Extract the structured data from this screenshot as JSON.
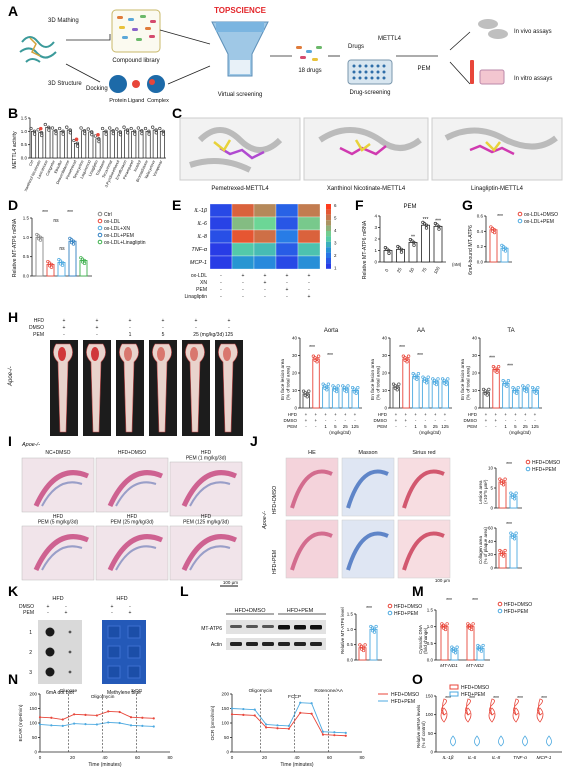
{
  "panel_letters": [
    "A",
    "B",
    "C",
    "D",
    "E",
    "F",
    "G",
    "H",
    "I",
    "J",
    "K",
    "L",
    "M",
    "N",
    "O"
  ],
  "panel_a": {
    "mathing": "3D Mathing",
    "structure": "3D Structure",
    "library": "Compound\nlibrary",
    "docking": "Docking",
    "protein": "Protein",
    "ligand": "Ligand",
    "complex": "Complex",
    "brand": "TOPSCIENCE",
    "virtual": "Virtual screening",
    "drugs18": "18 drugs",
    "drugs": "Drugs",
    "mettl4": "METTL4",
    "drugscreen": "Drug-screening",
    "pem": "PEM",
    "invivo": "In vivo assays",
    "invitro": "In vitro assays"
  },
  "panel_b": {
    "ylabel": "METTL4 activity",
    "yticks": [
      "0.0",
      "0.5",
      "1.0",
      "1.5"
    ],
    "drugs": [
      "Ctrl",
      "Xanthinol Nicotinate",
      "Lancotrione",
      "Cangrelor",
      "Ebsulfur",
      "Desvenlafaxine",
      "Pemetrexed",
      "Tetracycline",
      "Laquinimod",
      "Linagliptin",
      "Trilostane",
      "Tecovirimat",
      "3-Pyridineethanol",
      "Enrofloxacin",
      "Perampanel",
      "Inositol",
      "Bromadiolone",
      "Valacyclovir",
      "Vorapaxar"
    ],
    "values": [
      1.0,
      0.95,
      1.15,
      1.02,
      1.0,
      1.05,
      0.55,
      1.02,
      0.98,
      0.72,
      1.0,
      1.02,
      0.98,
      1.05,
      1.0,
      1.02,
      1.0,
      1.05,
      1.0
    ]
  },
  "panel_c": {
    "labels": [
      "Pemetrexed-METTL4",
      "Xanthinol Nicotinate-METTL4",
      "Linagliptin-METTL4"
    ]
  },
  "panel_d": {
    "ylabel": "Relative MT-ATP6 mRNA",
    "yticks": [
      "0.0",
      "0.5",
      "1.0",
      "1.5"
    ],
    "ns": "ns",
    "stars": "***",
    "legend": [
      "Ctrl",
      "ox-LDL",
      "ox-LDL+XN",
      "ox-LDL+PEM",
      "ox-LDL+Linagliptin"
    ],
    "values": [
      1.0,
      0.3,
      0.35,
      0.9,
      0.4
    ],
    "colors": [
      "#888888",
      "#e8463a",
      "#4ca9e0",
      "#2f7fc1",
      "#3cb04b"
    ]
  },
  "panel_e": {
    "genes": [
      "IL-1β",
      "IL-6",
      "IL-8",
      "TNF-α",
      "MCP-1"
    ],
    "scale": [
      "6",
      "5",
      "4",
      "3",
      "2",
      "1"
    ],
    "conditions": [
      "ox-LDL",
      "XN",
      "PEM",
      "Linagliptin"
    ],
    "signs": [
      [
        "-",
        "+",
        "+",
        "+",
        "+"
      ],
      [
        "-",
        "-",
        "+",
        "-",
        "-"
      ],
      [
        "-",
        "-",
        "-",
        "+",
        "-"
      ],
      [
        "-",
        "-",
        "-",
        "-",
        "+"
      ]
    ],
    "matrix": [
      [
        1.2,
        5.4,
        4.8,
        1.6,
        5.0
      ],
      [
        1.1,
        4.0,
        3.6,
        1.4,
        3.8
      ],
      [
        1.3,
        5.6,
        5.2,
        2.0,
        5.4
      ],
      [
        1.0,
        3.2,
        3.0,
        1.5,
        3.1
      ],
      [
        1.0,
        2.4,
        2.2,
        1.2,
        2.3
      ]
    ]
  },
  "panel_f": {
    "title": "PEM",
    "ylabel": "Relative MT-ATP6 mRNA",
    "yticks": [
      "0",
      "1",
      "2",
      "3",
      "4"
    ],
    "xticks": [
      "0",
      "25",
      "50",
      "75",
      "100"
    ],
    "xunit": "(nM)",
    "values": [
      1.0,
      1.1,
      1.7,
      3.2,
      3.1
    ],
    "stars": [
      "",
      "",
      "**",
      "***",
      "***"
    ]
  },
  "panel_g": {
    "ylabel": "6mA-bound MT-ATP6",
    "yticks": [
      "0.0",
      "0.2",
      "0.4",
      "0.6"
    ],
    "stars": "***",
    "legend": [
      "ox-LDL+DMSO",
      "ox-LDL+PEM"
    ],
    "values": [
      0.42,
      0.18
    ],
    "colors": [
      "#e8463a",
      "#4ca9e0"
    ]
  },
  "panel_h": {
    "rows": [
      "HFD",
      "DMSO",
      "PEM"
    ],
    "signs": [
      [
        "+",
        "+",
        "+",
        "+",
        "+",
        "+"
      ],
      [
        "+",
        "+",
        "-",
        "-",
        "-",
        "-"
      ],
      [
        "-",
        "-",
        "1",
        "5",
        "25",
        "125"
      ]
    ],
    "unit": "(mg/kg/3d)",
    "mouse": "Apoe-/-",
    "regions": [
      "Aorta",
      "AA",
      "TA"
    ],
    "ylabel": "En face lesion area\n(% of total area)",
    "yticks": [
      "0",
      "10",
      "20",
      "30",
      "40"
    ],
    "chart_data": [
      {
        "type": "bar",
        "title": "Aorta",
        "categories": [
          "Ctrl",
          "HFD",
          "1",
          "5",
          "25",
          "125"
        ],
        "values": [
          8,
          28,
          12,
          11,
          11,
          10
        ],
        "ylim": [
          0,
          40
        ]
      },
      {
        "type": "bar",
        "title": "AA",
        "categories": [
          "Ctrl",
          "HFD",
          "1",
          "5",
          "25",
          "125"
        ],
        "values": [
          12,
          28,
          18,
          16,
          15,
          15
        ],
        "ylim": [
          0,
          40
        ]
      },
      {
        "type": "bar",
        "title": "TA",
        "categories": [
          "Ctrl",
          "HFD",
          "1",
          "5",
          "25",
          "125"
        ],
        "values": [
          9,
          22,
          14,
          10,
          11,
          10
        ],
        "ylim": [
          0,
          40
        ]
      }
    ]
  },
  "panel_i": {
    "mouse": "Apoe-/-",
    "labels": [
      "NC+DMSO",
      "HFD+DMSO",
      "HFD\nPEM (1 mg/kg/3d)",
      "HFD\nPEM (5 mg/kg/3d)",
      "HFD\nPEM (25 mg/kg/3d)",
      "HFD\nPEM (125 mg/kg/3d)"
    ],
    "scale": "100 μm"
  },
  "panel_j": {
    "cols": [
      "HE",
      "Masson",
      "Sirius red"
    ],
    "rows": [
      "HFD+DMSO",
      "HFD+PEM"
    ],
    "mouse": "Apoe-/-",
    "scale": "100 μm",
    "legend": [
      "HFD+DMSO",
      "HFD+PEM"
    ],
    "lesion_ylabel": "Lesion area\n(×10^5 μm²)",
    "lesion_values": [
      6.5,
      3.0
    ],
    "collagen_ylabel": "Collagen area\n(% of plaque area)",
    "collagen_values": [
      22,
      48
    ],
    "stars": "***"
  },
  "panel_k": {
    "cols": [
      "HFD",
      "HFD"
    ],
    "rows": [
      "DMSO",
      "PEM"
    ],
    "signs": [
      [
        "+",
        "-"
      ],
      [
        "-",
        "+"
      ]
    ],
    "rownums": [
      "1",
      "2",
      "3"
    ],
    "captions": [
      "6mA dot blot",
      "Methylene blue"
    ]
  },
  "panel_l": {
    "groups": [
      "HFD+DMSO",
      "HFD+PEM"
    ],
    "bands": [
      "MT-ATP6",
      "Actin"
    ],
    "ylabel": "Relative MT-ATP6 level",
    "values": [
      0.4,
      1.0
    ],
    "legend": [
      "HFD+DMSO",
      "HFD+PEM"
    ],
    "stars": "***"
  },
  "panel_m": {
    "ylabel": "Cytosolic DNA\n(fold change)",
    "genes": [
      "MT-ND1",
      "MT-ND2"
    ],
    "legend": [
      "HFD+DMSO",
      "HFD+PEM"
    ],
    "values": [
      [
        1.0,
        0.3
      ],
      [
        1.0,
        0.35
      ]
    ],
    "stars": "***"
  },
  "panel_n": {
    "ecar": {
      "ylabel": "ECAR (mpH/min)",
      "xlabel": "Time (minutes)",
      "injections": [
        "Glucose",
        "Oligomycin",
        "2-DG"
      ],
      "xticks": [
        "0",
        "20",
        "40",
        "60",
        "80"
      ],
      "yticks": [
        "0",
        "50",
        "100",
        "150",
        "200"
      ],
      "x": [
        0,
        7,
        14,
        21,
        28,
        35,
        42,
        49,
        56,
        63,
        70
      ],
      "dmso": [
        120,
        118,
        112,
        130,
        128,
        126,
        140,
        138,
        120,
        118,
        116
      ],
      "pem": [
        95,
        92,
        90,
        98,
        96,
        95,
        102,
        100,
        92,
        90,
        88
      ]
    },
    "ocr": {
      "ylabel": "OCR (pmol/min)",
      "xlabel": "Time (minutes)",
      "injections": [
        "Oligomycin",
        "FCCP",
        "Rotenone/AA"
      ],
      "xticks": [
        "0",
        "20",
        "40",
        "60",
        "80"
      ],
      "yticks": [
        "0",
        "50",
        "100",
        "150",
        "200"
      ],
      "x": [
        0,
        7,
        14,
        21,
        28,
        35,
        42,
        49,
        56,
        63,
        70
      ],
      "dmso": [
        130,
        128,
        126,
        85,
        82,
        80,
        135,
        132,
        60,
        58,
        56
      ],
      "pem": [
        150,
        148,
        146,
        95,
        92,
        90,
        170,
        168,
        70,
        68,
        66
      ]
    },
    "legend": [
      "HFD+DMSO",
      "HFD+PEM"
    ]
  },
  "panel_o": {
    "ylabel": "Relative mRNA levels\n(% of control)",
    "genes": [
      "IL-1β",
      "IL-6",
      "IL-8",
      "TNF-α",
      "MCP-1"
    ],
    "legend": [
      "HFD+DMSO",
      "HFD+PEM"
    ],
    "stars": "***"
  },
  "colors": {
    "red": "#e8463a",
    "blue": "#4ca9e0",
    "darkblue": "#2f7fc1",
    "green": "#3cb04b",
    "gray": "#888888"
  }
}
